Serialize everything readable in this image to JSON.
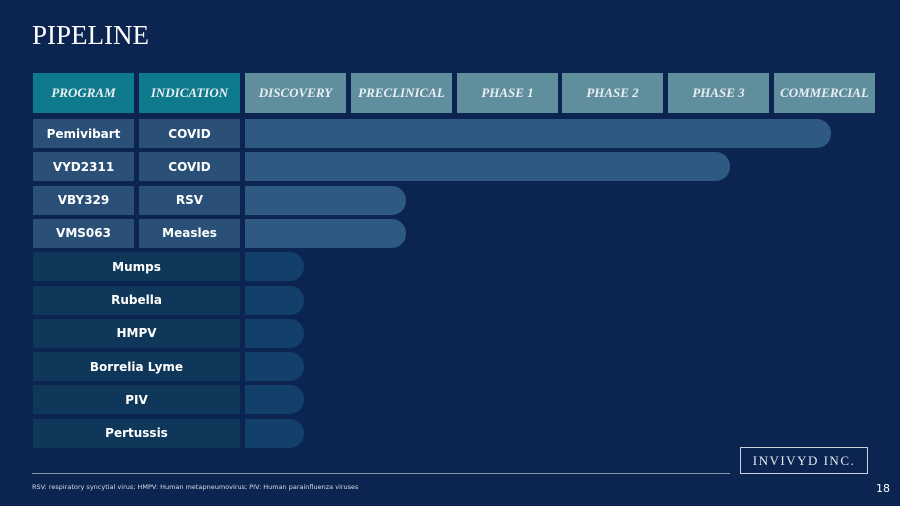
{
  "title": "PIPELINE",
  "table": {
    "headers": [
      "PROGRAM",
      "INDICATION",
      "DISCOVERY",
      "PRECLINICAL",
      "PHASE 1",
      "PHASE 2",
      "PHASE 3",
      "COMMERCIAL"
    ],
    "rows": [
      [
        "Pemivibart",
        "COVID"
      ],
      [
        "VYD2311",
        "COVID"
      ],
      [
        "VBY329",
        "RSV"
      ],
      [
        "VMS063",
        "Measles"
      ],
      [
        "Mumps"
      ],
      [
        "Rubella"
      ],
      [
        "HMPV"
      ],
      [
        "Borrelia Lyme"
      ],
      [
        "PIV"
      ],
      [
        "Pertussis"
      ]
    ]
  },
  "logo": "INVIVYD INC.",
  "footnote": "RSV: respiratory syncytial virus; HMPV: Human metapneumovirus;  PIV:  Human parainfluenza viruses",
  "page_number": "18"
}
